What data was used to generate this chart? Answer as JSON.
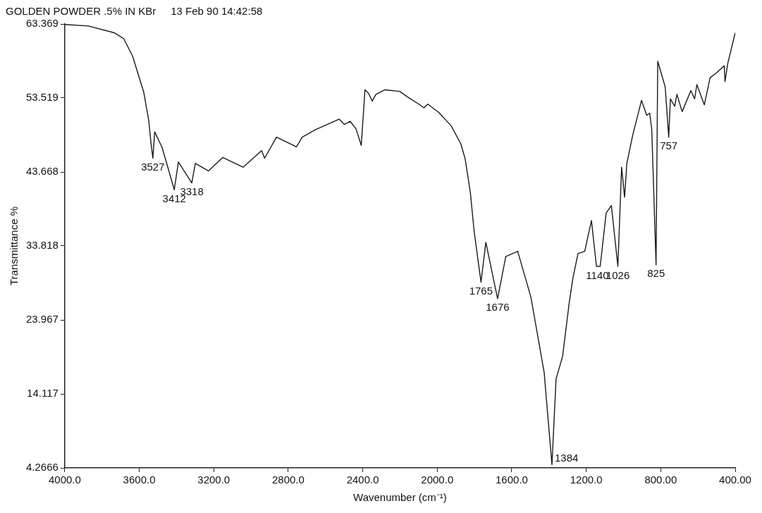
{
  "chart_data": {
    "type": "line",
    "title": "GOLDEN POWDER .5% IN KBr     13 Feb 90 14:42:58",
    "xlabel": "Wavenumber (cm⁻¹)",
    "ylabel": "Transmittance %",
    "x": [
      4000,
      3873,
      3735,
      3695,
      3683,
      3636,
      3576,
      3549,
      3537,
      3527,
      3517,
      3477,
      3412,
      3390,
      3318,
      3299,
      3228,
      3152,
      3042,
      2943,
      2927,
      2863,
      2756,
      2725,
      2653,
      2527,
      2499,
      2467,
      2436,
      2408,
      2388,
      2368,
      2349,
      2329,
      2281,
      2202,
      2162,
      2099,
      2071,
      2051,
      1992,
      1925,
      1873,
      1850,
      1822,
      1802,
      1765,
      1739,
      1676,
      1632,
      1568,
      1497,
      1426,
      1384,
      1362,
      1327,
      1291,
      1271,
      1244,
      1208,
      1172,
      1145,
      1125,
      1093,
      1065,
      1030,
      1010,
      994,
      982,
      950,
      903,
      875,
      859,
      848,
      825,
      816,
      776,
      757,
      748,
      725,
      713,
      685,
      638,
      618,
      606,
      566,
      535,
      499,
      459,
      455,
      440,
      400
    ],
    "series": [
      {
        "color": "#1a1a1a",
        "values": [
          63.3,
          63.1,
          62.2,
          61.6,
          61.4,
          59.1,
          54.3,
          50.5,
          47.5,
          45.5,
          49.0,
          46.9,
          41.3,
          45.0,
          42.2,
          44.8,
          43.8,
          45.6,
          44.3,
          46.5,
          45.5,
          48.3,
          47.0,
          48.3,
          49.3,
          50.7,
          50.0,
          50.4,
          49.4,
          47.2,
          54.6,
          54.1,
          53.1,
          54.0,
          54.6,
          54.4,
          53.7,
          52.7,
          52.2,
          52.7,
          51.6,
          49.8,
          47.4,
          45.4,
          40.9,
          35.8,
          29.0,
          34.3,
          26.8,
          32.4,
          33.1,
          27.0,
          17.0,
          4.7,
          16.1,
          19.1,
          26.3,
          29.6,
          32.8,
          33.1,
          37.2,
          31.1,
          31.1,
          38.2,
          39.2,
          31.1,
          44.3,
          40.3,
          44.8,
          48.6,
          53.2,
          51.2,
          51.5,
          49.3,
          31.3,
          58.4,
          55.0,
          48.3,
          53.4,
          52.4,
          54.0,
          51.7,
          54.5,
          53.4,
          55.3,
          52.6,
          56.2,
          56.9,
          57.8,
          55.7,
          58.1,
          62.2
        ]
      }
    ],
    "xlim": [
      4000,
      400
    ],
    "xticks": [
      {
        "value": 4000,
        "label": "4000.0"
      },
      {
        "value": 3600,
        "label": "3600.0"
      },
      {
        "value": 3200,
        "label": "3200.0"
      },
      {
        "value": 2800,
        "label": "2800.0"
      },
      {
        "value": 2400,
        "label": "2400.0"
      },
      {
        "value": 2000,
        "label": "2000.0"
      },
      {
        "value": 1600,
        "label": "1600.0"
      },
      {
        "value": 1200,
        "label": "1200.0"
      },
      {
        "value": 800,
        "label": "800.00"
      },
      {
        "value": 400,
        "label": "400.00"
      }
    ],
    "ylim": [
      4.2666,
      63.369
    ],
    "yticks": [
      4.2666,
      14.117,
      23.967,
      33.818,
      43.668,
      53.519,
      63.369
    ],
    "grid": false,
    "marker": "none",
    "line_style": "solid",
    "legend": false,
    "annotations": [
      {
        "text": "3527",
        "x": 3527,
        "y": 45.5
      },
      {
        "text": "3412",
        "x": 3412,
        "y": 41.3
      },
      {
        "text": "3318",
        "x": 3318,
        "y": 42.2
      },
      {
        "text": "1765",
        "x": 1765,
        "y": 29.0
      },
      {
        "text": "1676",
        "x": 1676,
        "y": 26.8
      },
      {
        "text": "1384",
        "x": 1384,
        "y": 4.7
      },
      {
        "text": "1140",
        "x": 1140,
        "y": 31.1
      },
      {
        "text": "1026",
        "x": 1030,
        "y": 31.1
      },
      {
        "text": "825",
        "x": 825,
        "y": 31.3
      },
      {
        "text": "757",
        "x": 757,
        "y": 48.3
      }
    ]
  }
}
